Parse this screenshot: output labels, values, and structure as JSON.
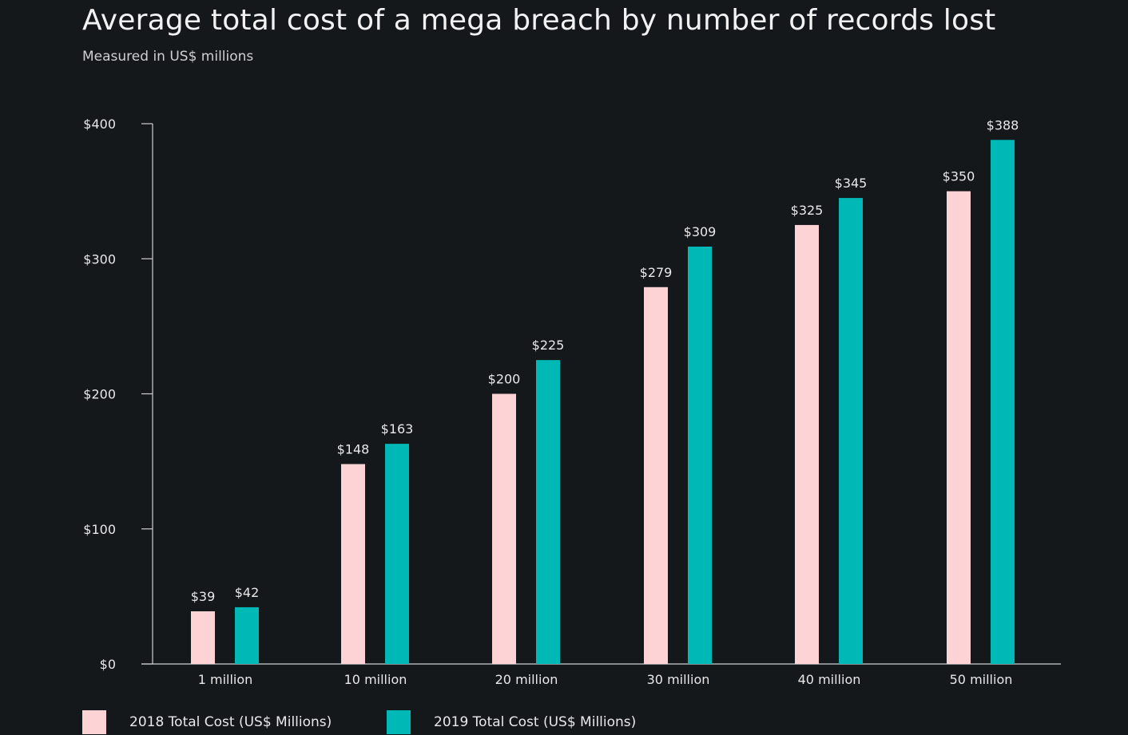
{
  "title": "Average total cost of a mega breach by number of records lost",
  "subtitle": "Measured in US$ millions",
  "colors": {
    "background": "#15181b",
    "series_2018": "#fdd3d6",
    "series_2019": "#00b9b6",
    "axis": "#d0d0d0",
    "text": "#e8e8e8"
  },
  "chart_data": {
    "type": "bar",
    "title": "Average total cost of a mega breach by number of records lost",
    "subtitle": "Measured in US$ millions",
    "xlabel": "",
    "ylabel": "",
    "ylim": [
      0,
      400
    ],
    "yticks": [
      0,
      100,
      200,
      300,
      400
    ],
    "ytick_labels": [
      "$0",
      "$100",
      "$200",
      "$300",
      "$400"
    ],
    "categories": [
      "1 million",
      "10 million",
      "20 million",
      "30 million",
      "40 million",
      "50 million"
    ],
    "series": [
      {
        "name": "2018 Total Cost (US$ Millions)",
        "values": [
          39,
          148,
          200,
          279,
          325,
          350
        ],
        "labels": [
          "$39",
          "$148",
          "$200",
          "$279",
          "$325",
          "$350"
        ]
      },
      {
        "name": "2019 Total Cost (US$ Millions)",
        "values": [
          42,
          163,
          225,
          309,
          345,
          388
        ],
        "labels": [
          "$42",
          "$163",
          "$225",
          "$309",
          "$345",
          "$388"
        ]
      }
    ],
    "grid": false,
    "legend_position": "bottom-left"
  }
}
